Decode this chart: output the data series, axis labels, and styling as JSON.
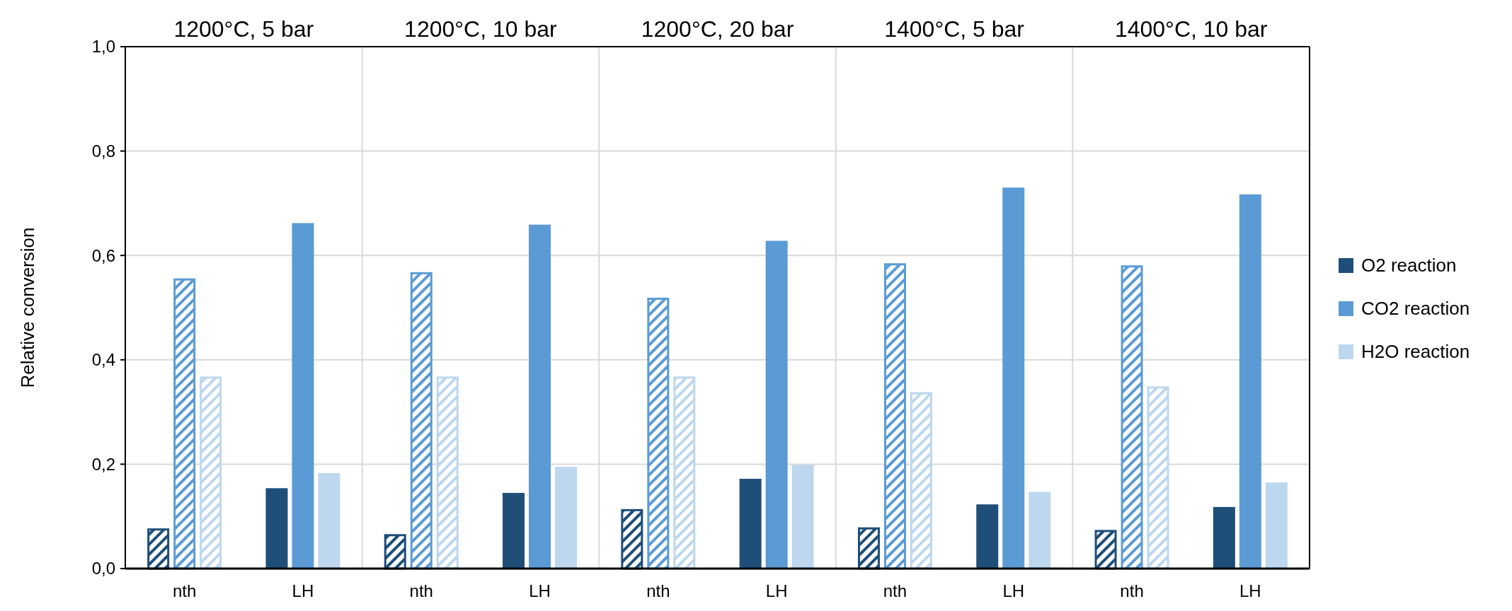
{
  "chart_data": {
    "type": "bar",
    "ylabel": "Relative conversion",
    "annotations": [
      "1200°C, 5 bar",
      "1200°C, 10 bar",
      "1200°C, 20 bar",
      "1400°C, 5 bar",
      "1400°C, 10 bar"
    ],
    "categories": [
      "nth",
      "LH",
      "nth",
      "LH",
      "nth",
      "LH",
      "nth",
      "LH",
      "nth",
      "LH"
    ],
    "series": [
      {
        "name": "O2 reaction",
        "color": "#1f4e79",
        "values": [
          0.077,
          0.154,
          0.066,
          0.145,
          0.114,
          0.172,
          0.079,
          0.123,
          0.074,
          0.118
        ]
      },
      {
        "name": "CO2 reaction",
        "color": "#5b9bd5",
        "values": [
          0.556,
          0.662,
          0.568,
          0.659,
          0.519,
          0.628,
          0.585,
          0.73,
          0.581,
          0.717
        ]
      },
      {
        "name": "H2O reaction",
        "color": "#bdd7ee",
        "values": [
          0.368,
          0.183,
          0.368,
          0.195,
          0.368,
          0.199,
          0.338,
          0.147,
          0.349,
          0.165
        ]
      }
    ],
    "ylim": [
      0,
      1
    ],
    "yticks": [
      {
        "value": 0,
        "label": "0,0"
      },
      {
        "value": 0.2,
        "label": "0,2"
      },
      {
        "value": 0.4,
        "label": "0,4"
      },
      {
        "value": 0.6,
        "label": "0,6"
      },
      {
        "value": 0.8,
        "label": "0,8"
      },
      {
        "value": 1,
        "label": "1,0"
      }
    ],
    "grid": true,
    "legend": "right"
  }
}
